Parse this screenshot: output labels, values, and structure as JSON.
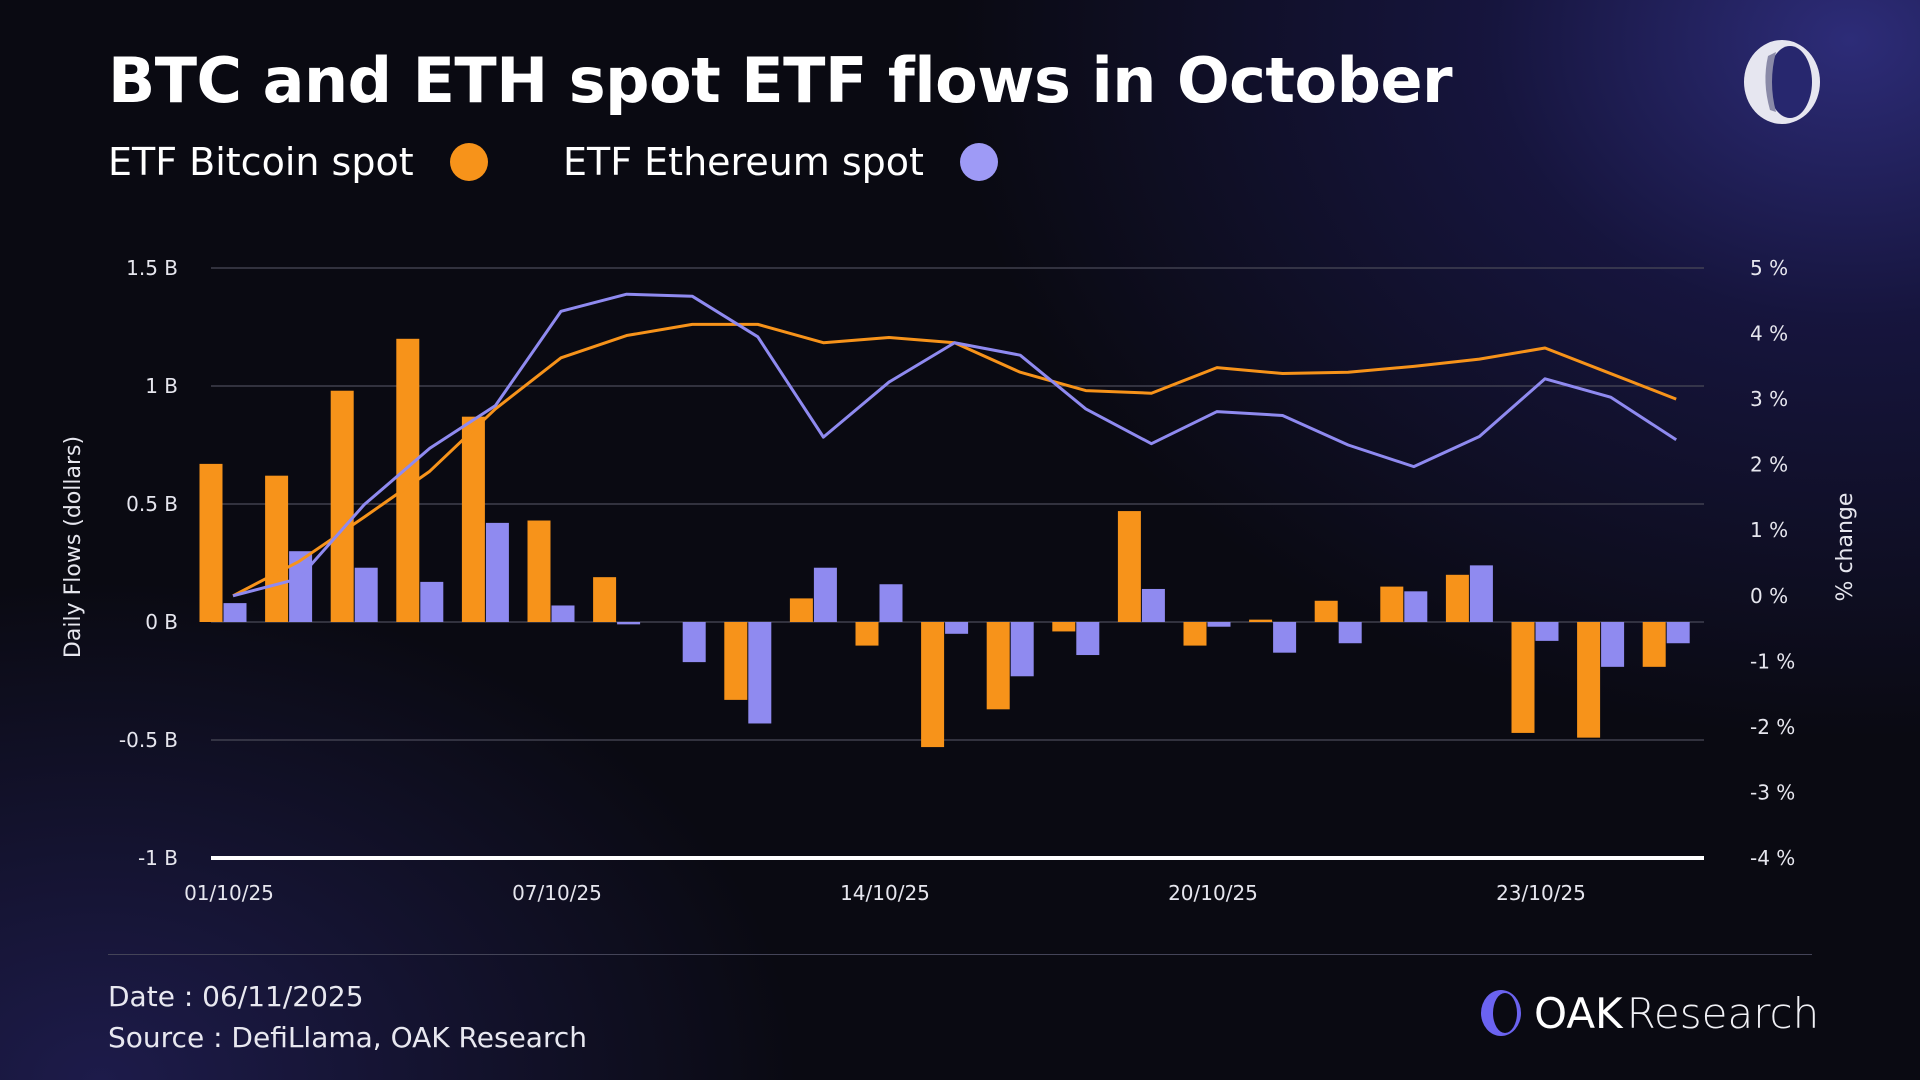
{
  "title": "BTC and ETH spot ETF flows in October",
  "legend": [
    {
      "label": "ETF Bitcoin spot",
      "color": "#f7931a"
    },
    {
      "label": "ETF Ethereum spot",
      "color": "#8f8af0"
    }
  ],
  "chart_data": {
    "type": "bar+line",
    "title": "BTC and ETH spot ETF flows in October",
    "ylabel": "Daily Flows (dollars)",
    "y2label": "% change",
    "ylim": [
      -1,
      1.5
    ],
    "y2lim": [
      -4,
      5
    ],
    "yticks": [
      "1.5 B",
      "1 B",
      "0.5 B",
      "0 B",
      "-0.5 B",
      "-1 B"
    ],
    "y2ticks": [
      "5 %",
      "4 %",
      "3 %",
      "2 %",
      "1 %",
      "0 %",
      "-1 %",
      "-2 %",
      "-3 %",
      "-4 %"
    ],
    "xticks": [
      {
        "index": 0,
        "label": "01/10/25"
      },
      {
        "index": 5,
        "label": "07/10/25"
      },
      {
        "index": 10,
        "label": "14/10/25"
      },
      {
        "index": 15,
        "label": "20/10/25"
      },
      {
        "index": 20,
        "label": "23/10/25"
      }
    ],
    "n": 23,
    "bars": [
      {
        "name": "ETF Bitcoin spot",
        "unit": "B USD",
        "values": [
          0.67,
          0.62,
          0.98,
          1.2,
          0.87,
          0.43,
          0.19,
          0,
          -0.33,
          0.1,
          -0.1,
          -0.53,
          -0.37,
          -0.04,
          0.47,
          -0.1,
          0.01,
          0.09,
          0.15,
          0.2,
          -0.47,
          -0.49,
          -0.19
        ]
      },
      {
        "name": "ETF Ethereum spot",
        "unit": "B USD",
        "values": [
          0.08,
          0.3,
          0.23,
          0.17,
          0.42,
          0.07,
          -0.01,
          -0.17,
          -0.43,
          0.23,
          0.16,
          -0.05,
          -0.23,
          -0.14,
          0.14,
          -0.02,
          -0.13,
          -0.09,
          0.13,
          0.24,
          -0.08,
          -0.19,
          -0.09
        ]
      }
    ],
    "lines": [
      {
        "name": "ETF Bitcoin spot % change",
        "values": [
          0,
          0.52,
          1.2,
          1.9,
          2.85,
          3.63,
          3.97,
          4.14,
          4.14,
          3.86,
          3.94,
          3.86,
          3.41,
          3.13,
          3.09,
          3.48,
          3.39,
          3.41,
          3.5,
          3.61,
          3.78,
          3.39,
          3.0
        ]
      },
      {
        "name": "ETF Ethereum spot % change",
        "values": [
          0,
          0.26,
          1.39,
          2.25,
          2.9,
          4.34,
          4.6,
          4.57,
          3.95,
          2.42,
          3.26,
          3.86,
          3.67,
          2.85,
          2.32,
          2.81,
          2.75,
          2.3,
          1.97,
          2.43,
          3.31,
          3.03,
          2.38
        ]
      }
    ]
  },
  "footer": {
    "date": "Date : 06/11/2025",
    "source": "Source : DefiLlama, OAK Research"
  },
  "brand": {
    "name_bold": "OAK",
    "name_light": "Research"
  }
}
